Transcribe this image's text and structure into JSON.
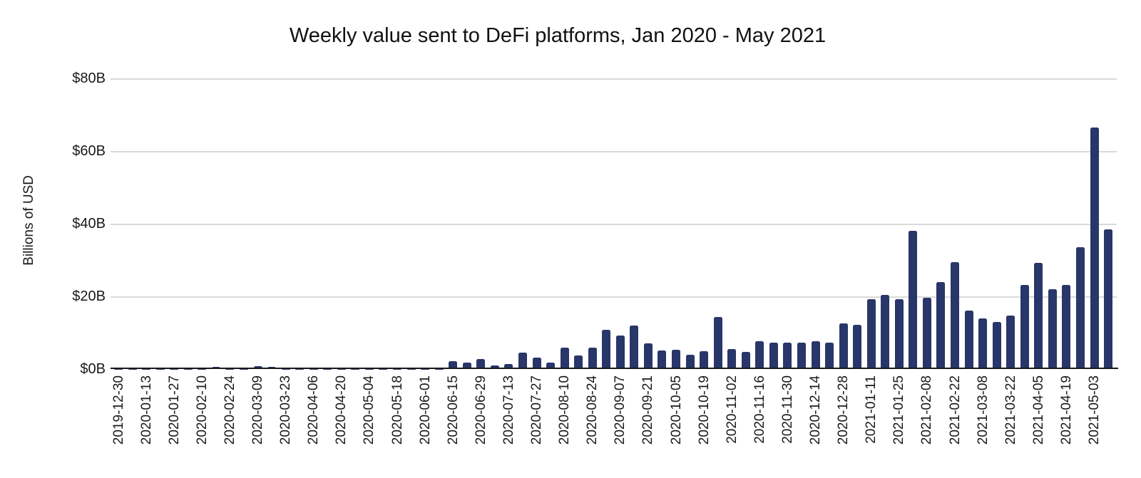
{
  "chart_data": {
    "type": "bar",
    "title": "Weekly value sent to DeFi platforms, Jan 2020 - May 2021",
    "ylabel": "Billions of USD",
    "xlabel": "",
    "ylim": [
      0,
      80
    ],
    "y_ticks": [
      {
        "value": 0,
        "label": "$0B"
      },
      {
        "value": 20,
        "label": "$20B"
      },
      {
        "value": 40,
        "label": "$40B"
      },
      {
        "value": 60,
        "label": "$60B"
      },
      {
        "value": 80,
        "label": "$80B"
      }
    ],
    "grid": "horizontal",
    "legend": "none",
    "x_tick_every": 2,
    "bar_color": "#293669",
    "gridline_color": "#d9d9d9",
    "axis_color": "#1a1a1a",
    "categories": [
      "2019-12-30",
      "2020-01-06",
      "2020-01-13",
      "2020-01-20",
      "2020-01-27",
      "2020-02-03",
      "2020-02-10",
      "2020-02-17",
      "2020-02-24",
      "2020-03-02",
      "2020-03-09",
      "2020-03-16",
      "2020-03-23",
      "2020-03-30",
      "2020-04-06",
      "2020-04-13",
      "2020-04-20",
      "2020-04-27",
      "2020-05-04",
      "2020-05-11",
      "2020-05-18",
      "2020-05-25",
      "2020-06-01",
      "2020-06-08",
      "2020-06-15",
      "2020-06-22",
      "2020-06-29",
      "2020-07-06",
      "2020-07-13",
      "2020-07-20",
      "2020-07-27",
      "2020-08-03",
      "2020-08-10",
      "2020-08-17",
      "2020-08-24",
      "2020-08-31",
      "2020-09-07",
      "2020-09-14",
      "2020-09-21",
      "2020-09-28",
      "2020-10-05",
      "2020-10-12",
      "2020-10-19",
      "2020-10-26",
      "2020-11-02",
      "2020-11-09",
      "2020-11-16",
      "2020-11-23",
      "2020-11-30",
      "2020-12-07",
      "2020-12-14",
      "2020-12-21",
      "2020-12-28",
      "2021-01-04",
      "2021-01-11",
      "2021-01-18",
      "2021-01-25",
      "2021-02-01",
      "2021-02-08",
      "2021-02-15",
      "2021-02-22",
      "2021-03-01",
      "2021-03-08",
      "2021-03-15",
      "2021-03-22",
      "2021-03-29",
      "2021-04-05",
      "2021-04-12",
      "2021-04-19",
      "2021-04-26",
      "2021-05-03",
      "2021-05-10"
    ],
    "values": [
      0.1,
      0.1,
      0.1,
      0.1,
      0.1,
      0.1,
      0.1,
      0.5,
      0.1,
      0.1,
      0.85,
      0.5,
      0.1,
      0.1,
      0.1,
      0.1,
      0.1,
      0.1,
      0.1,
      0.1,
      0.1,
      0.1,
      0.1,
      0.1,
      2.2,
      1.7,
      2.8,
      1.0,
      1.3,
      4.5,
      3.2,
      1.8,
      5.9,
      3.8,
      5.8,
      10.7,
      9.3,
      12.0,
      7.0,
      5.1,
      5.3,
      3.9,
      4.9,
      14.4,
      5.5,
      4.8,
      7.7,
      7.3,
      7.2,
      7.2,
      7.6,
      7.2,
      12.5,
      12.2,
      19.3,
      20.4,
      19.3,
      38.0,
      19.6,
      24.0,
      29.4,
      16.0,
      14.0,
      13.0,
      14.8,
      23.2,
      29.3,
      22.0,
      23.2,
      33.5,
      66.5,
      38.5
    ]
  }
}
